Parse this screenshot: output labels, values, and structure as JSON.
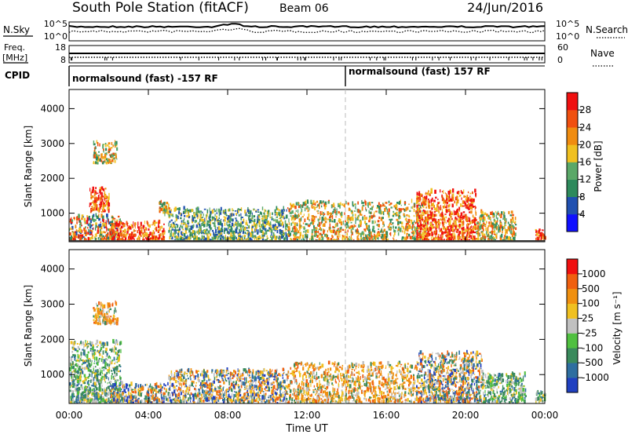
{
  "header": {
    "station": "South Pole Station (fitACF)",
    "beam": "Beam 06",
    "date": "24/Jun/2016"
  },
  "top_strips": {
    "nsky_label": "N.Sky",
    "nsky_ticks": [
      "10^5",
      "10^0"
    ],
    "nsearch_label": "N.Search",
    "nsearch_ticks": [
      "10^5",
      "10^0"
    ],
    "freq_label_1": "Freq.",
    "freq_label_2": "[MHz]",
    "freq_ticks": [
      "18",
      "8"
    ],
    "nave_label": "Nave",
    "nave_ticks": [
      "60",
      "0"
    ],
    "cpid_label": "CPID",
    "cpid_segments": [
      "normalsound (fast) -157 RF",
      "normalsound (fast) 157 RF"
    ]
  },
  "chart_data": [
    {
      "type": "heatmap",
      "panel": "power",
      "ylabel": "Slant Range [km]",
      "ylim": [
        180,
        4550
      ],
      "yticks": [
        "1000",
        "2000",
        "3000",
        "4000"
      ],
      "xlim": [
        "00:00",
        "24:00"
      ],
      "colorbar_label": "Power [dB]",
      "colorbar_ticks": [
        "4",
        "8",
        "12",
        "16",
        "20",
        "24",
        "28"
      ],
      "colorbar_colors": [
        "#1010ff",
        "#2050b0",
        "#2e8a5c",
        "#5aa868",
        "#f0c020",
        "#f08c10",
        "#f05010",
        "#f01010"
      ],
      "scatter_regions": [
        {
          "t_start": 0.0,
          "t_end": 2.6,
          "r_start": 180,
          "r_end": 900,
          "level": "mixed"
        },
        {
          "t_start": 1.0,
          "t_end": 2.0,
          "r_start": 1000,
          "r_end": 1700,
          "level": "high"
        },
        {
          "t_start": 1.2,
          "t_end": 2.4,
          "r_start": 2400,
          "r_end": 3000,
          "level": "medium"
        },
        {
          "t_start": 2.0,
          "t_end": 4.8,
          "r_start": 180,
          "r_end": 700,
          "level": "high"
        },
        {
          "t_start": 4.5,
          "t_end": 5.0,
          "r_start": 900,
          "r_end": 1300,
          "level": "medium"
        },
        {
          "t_start": 5.0,
          "t_end": 11.0,
          "r_start": 180,
          "r_end": 1100,
          "level": "low"
        },
        {
          "t_start": 11.0,
          "t_end": 18.0,
          "r_start": 180,
          "r_end": 1300,
          "level": "medium"
        },
        {
          "t_start": 17.5,
          "t_end": 20.5,
          "r_start": 180,
          "r_end": 1600,
          "level": "high"
        },
        {
          "t_start": 20.5,
          "t_end": 22.5,
          "r_start": 180,
          "r_end": 1000,
          "level": "medium"
        },
        {
          "t_start": 23.5,
          "t_end": 24.0,
          "r_start": 180,
          "r_end": 500,
          "level": "high"
        }
      ]
    },
    {
      "type": "heatmap",
      "panel": "velocity",
      "ylabel": "Slant Range [km]",
      "ylim": [
        180,
        4550
      ],
      "yticks": [
        "1000",
        "2000",
        "3000",
        "4000"
      ],
      "xlabel": "Time UT",
      "xlim": [
        "00:00",
        "24:00"
      ],
      "xticks": [
        "00:00",
        "04:00",
        "08:00",
        "12:00",
        "16:00",
        "20:00",
        "00:00"
      ],
      "colorbar_label": "Velocity [m s⁻¹]",
      "colorbar_ticks": [
        "1000",
        "500",
        "100",
        "25",
        "-25",
        "-100",
        "-500",
        "-1000"
      ],
      "colorbar_colors": [
        "#2040c0",
        "#2e6ea0",
        "#3a8a5c",
        "#50c040",
        "#c0c0c0",
        "#f0c020",
        "#f09010",
        "#f06010",
        "#f01010"
      ],
      "scatter_regions": [
        {
          "t_start": 0.0,
          "t_end": 2.6,
          "r_start": 180,
          "r_end": 1900,
          "level": "positive"
        },
        {
          "t_start": 1.2,
          "t_end": 2.4,
          "r_start": 2400,
          "r_end": 3000,
          "level": "negative"
        },
        {
          "t_start": 2.0,
          "t_end": 5.0,
          "r_start": 180,
          "r_end": 700,
          "level": "mixed"
        },
        {
          "t_start": 5.0,
          "t_end": 11.0,
          "r_start": 180,
          "r_end": 1100,
          "level": "mixed"
        },
        {
          "t_start": 11.0,
          "t_end": 17.5,
          "r_start": 180,
          "r_end": 1300,
          "level": "negative"
        },
        {
          "t_start": 17.5,
          "t_end": 20.8,
          "r_start": 180,
          "r_end": 1600,
          "level": "mixed"
        },
        {
          "t_start": 20.8,
          "t_end": 23.0,
          "r_start": 180,
          "r_end": 1000,
          "level": "positive"
        },
        {
          "t_start": 23.5,
          "t_end": 24.0,
          "r_start": 180,
          "r_end": 500,
          "level": "positive"
        }
      ]
    }
  ]
}
